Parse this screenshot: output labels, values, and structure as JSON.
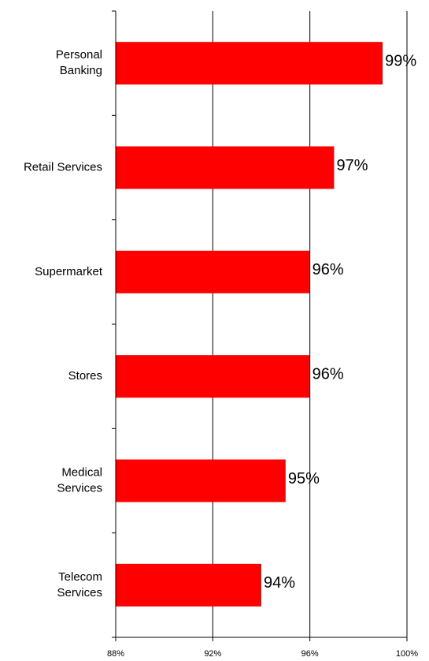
{
  "chart_data": {
    "type": "bar",
    "orientation": "horizontal",
    "categories": [
      "Personal Banking",
      "Retail Services",
      "Supermarket",
      "Stores",
      "Medical Services",
      "Telecom Services"
    ],
    "category_label_lines": [
      [
        "Personal",
        "Banking"
      ],
      [
        "Retail Services"
      ],
      [
        "Supermarket"
      ],
      [
        "Stores"
      ],
      [
        "Medical",
        "Services"
      ],
      [
        "Telecom",
        "Services"
      ]
    ],
    "values": [
      99,
      97,
      96,
      96,
      95,
      94
    ],
    "value_labels": [
      "99%",
      "97%",
      "96%",
      "96%",
      "95%",
      "94%"
    ],
    "xlim": [
      88,
      100
    ],
    "x_ticks": [
      88,
      92,
      96,
      100
    ],
    "x_tick_labels": [
      "88%",
      "92%",
      "96%",
      "100%"
    ],
    "bar_color": "#ff0000",
    "grid": "vertical lines",
    "legend": "none",
    "title": "",
    "xlabel": "",
    "ylabel": ""
  }
}
